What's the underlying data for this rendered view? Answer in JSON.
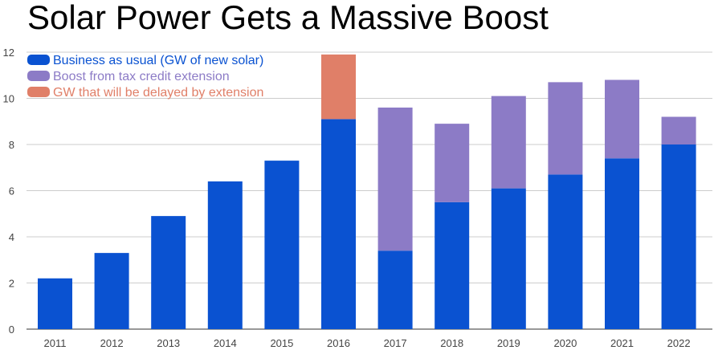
{
  "chart_data": {
    "type": "bar",
    "stacked": true,
    "title": "Solar Power Gets a Massive Boost",
    "xlabel": "",
    "ylabel": "",
    "ylim": [
      0,
      12
    ],
    "yticks": [
      "0",
      "2",
      "4",
      "6",
      "8",
      "10",
      "12"
    ],
    "grid": true,
    "legend_position": "top-left",
    "categories": [
      "2011",
      "2012",
      "2013",
      "2014",
      "2015",
      "2016",
      "2017",
      "2018",
      "2019",
      "2020",
      "2021",
      "2022"
    ],
    "series": [
      {
        "name": "Business as usual (GW of new solar)",
        "color": "#0a52d1",
        "values": [
          2.2,
          3.3,
          4.9,
          6.4,
          7.3,
          9.1,
          3.4,
          5.5,
          6.1,
          6.7,
          7.4,
          8.0
        ]
      },
      {
        "name": "Boost from tax credit extension",
        "color": "#8c7bc6",
        "values": [
          0,
          0,
          0,
          0,
          0,
          0,
          6.2,
          3.4,
          4.0,
          4.0,
          3.4,
          1.2
        ]
      },
      {
        "name": "GW that will be delayed by extension",
        "color": "#e07f68",
        "values": [
          0,
          0,
          0,
          0,
          0,
          2.8,
          0,
          0,
          0,
          0,
          0,
          0
        ]
      }
    ]
  }
}
